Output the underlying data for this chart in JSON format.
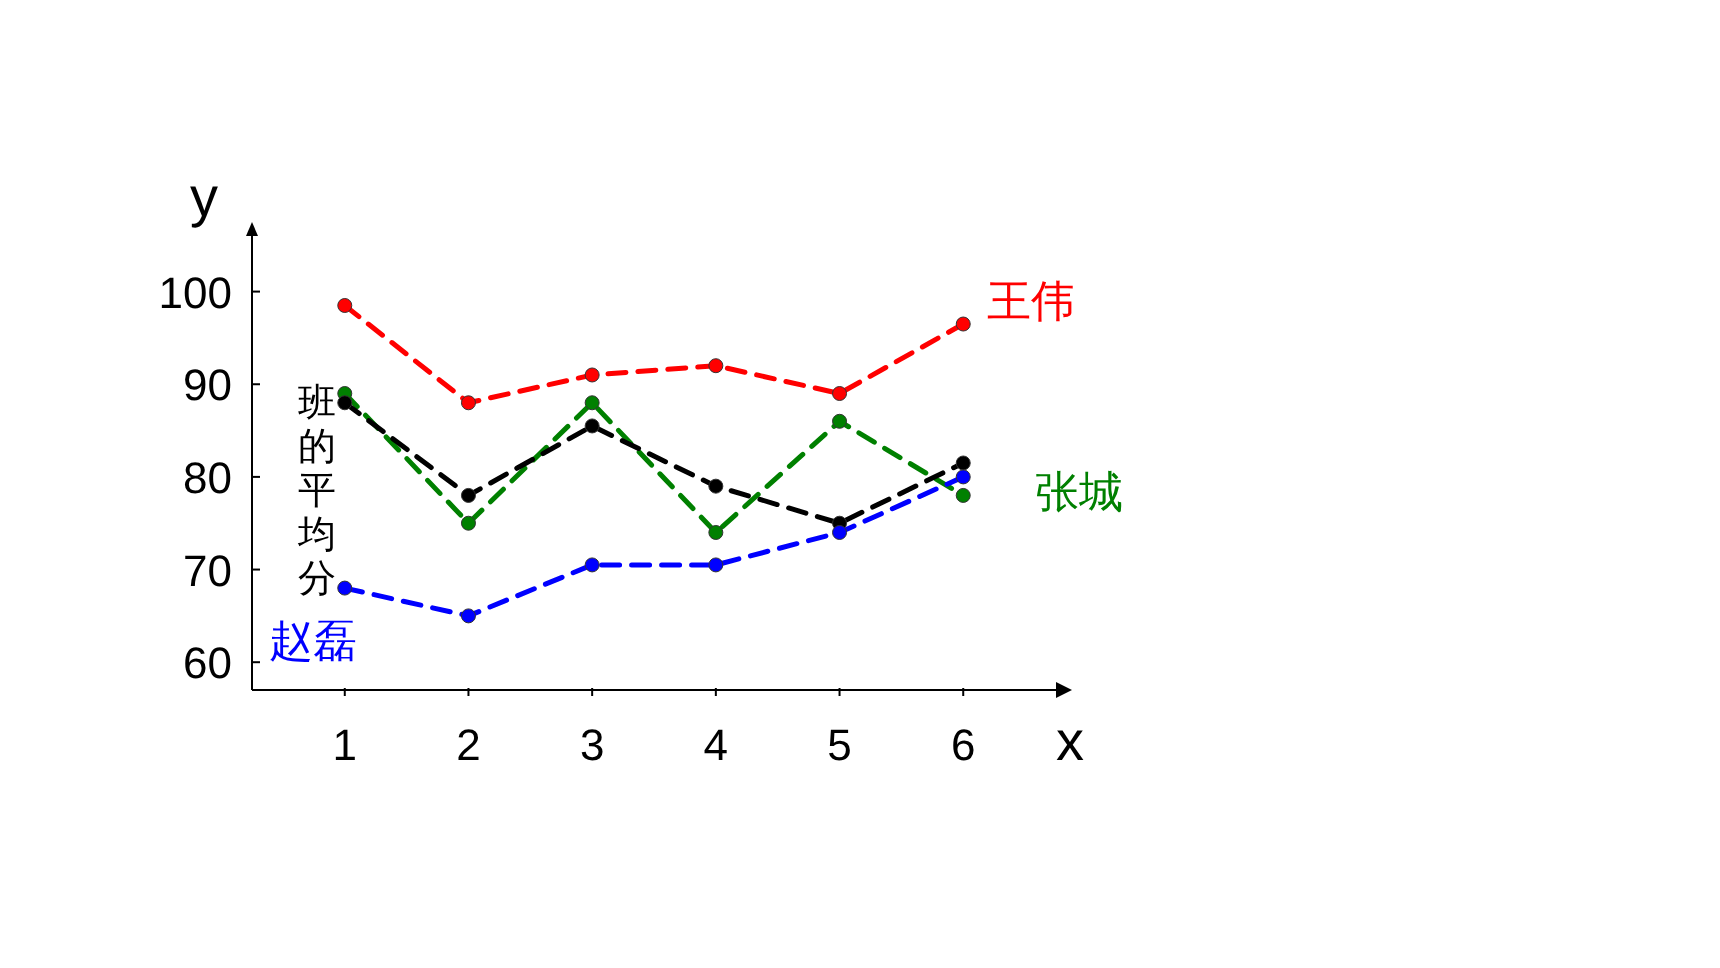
{
  "chart_data": {
    "type": "line",
    "xlabel": "x",
    "ylabel": "y",
    "x": [
      1,
      2,
      3,
      4,
      5,
      6
    ],
    "xlim": [
      0.25,
      6.75
    ],
    "xticks": [
      1,
      2,
      3,
      4,
      5,
      6
    ],
    "ylim": [
      57,
      106
    ],
    "yticks": [
      60,
      70,
      80,
      90,
      100
    ],
    "marker": "circle",
    "line_style": "dashed",
    "series": [
      {
        "name": "王伟",
        "color": "#ff0000",
        "values": [
          98.5,
          88,
          91,
          92,
          89,
          96.5
        ]
      },
      {
        "name": "张城",
        "color": "#008000",
        "values": [
          89,
          75,
          88,
          74,
          86,
          78
        ]
      },
      {
        "name": "班的平均分",
        "color": "#000000",
        "values": [
          88,
          78,
          85.5,
          79,
          75,
          81.5
        ]
      },
      {
        "name": "赵磊",
        "color": "#0000ff",
        "values": [
          68,
          65,
          70.5,
          70.5,
          74,
          80
        ]
      }
    ]
  }
}
